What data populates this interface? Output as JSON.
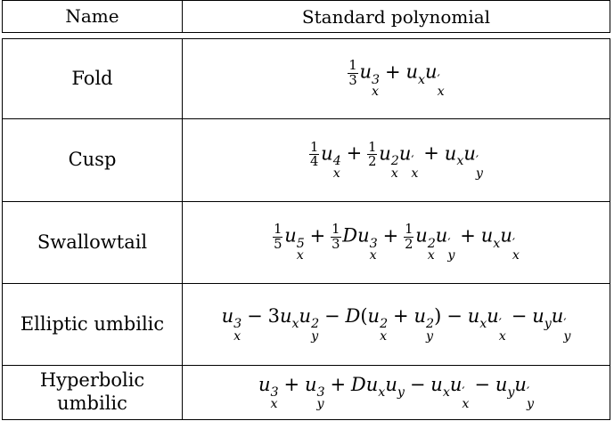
{
  "table": {
    "headers": {
      "name": "Name",
      "polynomial": "Standard polynomial"
    },
    "rows": [
      {
        "name": "Fold",
        "polynomial": "⅓u_x³ + u_x u_x′"
      },
      {
        "name": "Cusp",
        "polynomial": "¼u_x⁴ + ½u_x²u_x′ + u_x u_y′"
      },
      {
        "name": "Swallowtail",
        "polynomial": "⅕u_x⁵ + ⅓Du_x³ + ½u_x²u_y′ + u_x u_x′"
      },
      {
        "name": "Elliptic umbilic",
        "polynomial": "u_x³ − 3u_x u_y² − D(u_x² + u_y²) − u_x u_x′ − u_y u_y′"
      },
      {
        "name_lines": [
          "Hyperbolic",
          "umbilic"
        ],
        "polynomial": "u_x³ + u_y³ + Du_x u_y − u_x u_x′ − u_y u_y′"
      }
    ]
  }
}
